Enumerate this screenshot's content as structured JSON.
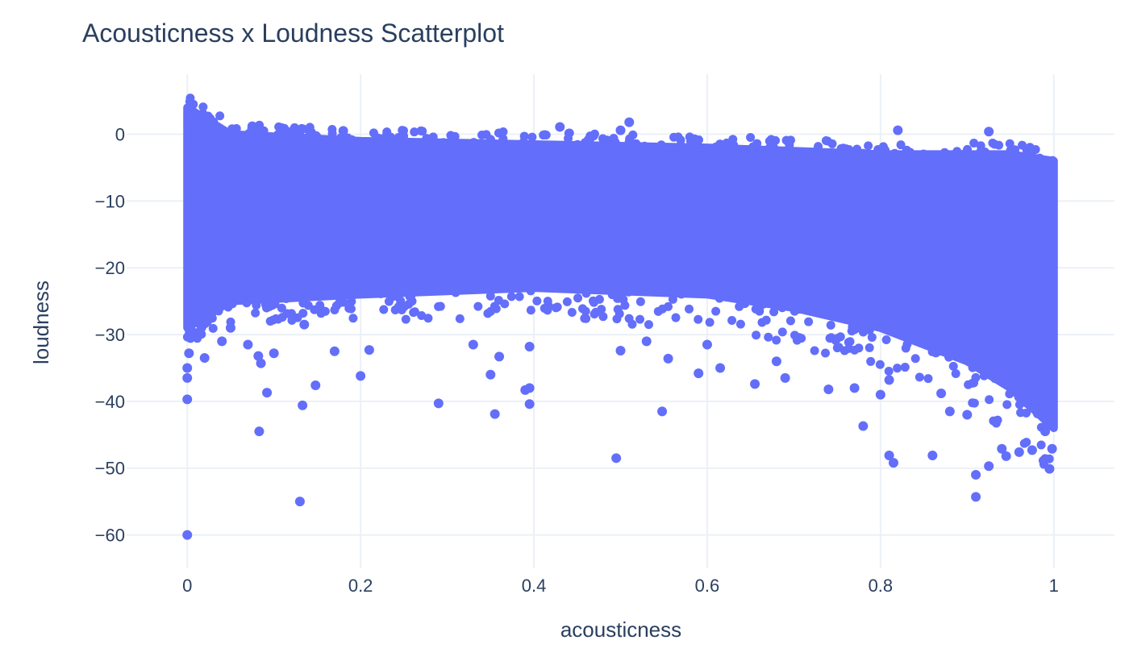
{
  "chart_data": {
    "type": "scatter",
    "title": "Acousticness x Loudness Scatterplot",
    "xlabel": "acousticness",
    "ylabel": "loudness",
    "xlim": [
      -0.07,
      1.07
    ],
    "ylim": [
      -65,
      9
    ],
    "xticks": [
      0,
      0.2,
      0.4,
      0.6,
      0.8,
      1
    ],
    "xtick_labels": [
      "0",
      "0.2",
      "0.4",
      "0.6",
      "0.8",
      "1"
    ],
    "yticks": [
      0,
      -10,
      -20,
      -30,
      -40,
      -50,
      -60
    ],
    "ytick_labels": [
      "0",
      "−10",
      "−20",
      "−30",
      "−40",
      "−50",
      "−60"
    ],
    "grid": true,
    "legend": "none",
    "marker_color": "#636efa",
    "density_band": {
      "description": "dense cloud of points",
      "upper": [
        [
          0.0,
          4
        ],
        [
          0.05,
          0
        ],
        [
          0.2,
          -1
        ],
        [
          0.4,
          -1.5
        ],
        [
          0.6,
          -2
        ],
        [
          0.8,
          -3
        ],
        [
          0.95,
          -3
        ],
        [
          1.0,
          -4
        ]
      ],
      "lower": [
        [
          0.0,
          -29
        ],
        [
          0.05,
          -25
        ],
        [
          0.2,
          -24
        ],
        [
          0.4,
          -23
        ],
        [
          0.6,
          -24
        ],
        [
          0.7,
          -26
        ],
        [
          0.8,
          -29
        ],
        [
          0.9,
          -34
        ],
        [
          0.95,
          -38
        ],
        [
          1.0,
          -44
        ]
      ]
    },
    "points": [
      {
        "x": 0.0,
        "y": -60
      },
      {
        "x": 0.0,
        "y": -39.7
      },
      {
        "x": 0.0,
        "y": -36.5
      },
      {
        "x": 0.0,
        "y": -35
      },
      {
        "x": 0.002,
        "y": -32.8
      },
      {
        "x": 0.002,
        "y": 3.8
      },
      {
        "x": 0.005,
        "y": 2.5
      },
      {
        "x": 0.02,
        "y": -33.5
      },
      {
        "x": 0.03,
        "y": 1.8
      },
      {
        "x": 0.04,
        "y": -31
      },
      {
        "x": 0.05,
        "y": -29
      },
      {
        "x": 0.07,
        "y": -31.5
      },
      {
        "x": 0.075,
        "y": 1.2
      },
      {
        "x": 0.082,
        "y": -33.2
      },
      {
        "x": 0.083,
        "y": -44.5
      },
      {
        "x": 0.085,
        "y": -34.3
      },
      {
        "x": 0.092,
        "y": -38.7
      },
      {
        "x": 0.1,
        "y": -32.8
      },
      {
        "x": 0.13,
        "y": -55
      },
      {
        "x": 0.133,
        "y": -40.6
      },
      {
        "x": 0.135,
        "y": -28.5
      },
      {
        "x": 0.148,
        "y": -37.6
      },
      {
        "x": 0.17,
        "y": -32.5
      },
      {
        "x": 0.18,
        "y": 0.5
      },
      {
        "x": 0.2,
        "y": -36.2
      },
      {
        "x": 0.21,
        "y": -32.3
      },
      {
        "x": 0.29,
        "y": -40.3
      },
      {
        "x": 0.33,
        "y": -31.5
      },
      {
        "x": 0.35,
        "y": -36
      },
      {
        "x": 0.355,
        "y": -41.9
      },
      {
        "x": 0.36,
        "y": -33.3
      },
      {
        "x": 0.39,
        "y": -38.3
      },
      {
        "x": 0.395,
        "y": -38
      },
      {
        "x": 0.395,
        "y": -40.4
      },
      {
        "x": 0.395,
        "y": -31.8
      },
      {
        "x": 0.43,
        "y": 1.1
      },
      {
        "x": 0.495,
        "y": -48.5
      },
      {
        "x": 0.5,
        "y": -32.4
      },
      {
        "x": 0.5,
        "y": 0.6
      },
      {
        "x": 0.51,
        "y": 1.8
      },
      {
        "x": 0.53,
        "y": -31
      },
      {
        "x": 0.548,
        "y": -41.5
      },
      {
        "x": 0.555,
        "y": -33.6
      },
      {
        "x": 0.59,
        "y": -35.8
      },
      {
        "x": 0.6,
        "y": -31.5
      },
      {
        "x": 0.615,
        "y": -35
      },
      {
        "x": 0.655,
        "y": -37.4
      },
      {
        "x": 0.68,
        "y": -34
      },
      {
        "x": 0.69,
        "y": -36.5
      },
      {
        "x": 0.74,
        "y": -38.2
      },
      {
        "x": 0.77,
        "y": -38
      },
      {
        "x": 0.78,
        "y": -43.7
      },
      {
        "x": 0.8,
        "y": -39
      },
      {
        "x": 0.81,
        "y": -36.8
      },
      {
        "x": 0.81,
        "y": -48.1
      },
      {
        "x": 0.815,
        "y": -49.2
      },
      {
        "x": 0.82,
        "y": 0.6
      },
      {
        "x": 0.86,
        "y": -48.1
      },
      {
        "x": 0.87,
        "y": -38.8
      },
      {
        "x": 0.88,
        "y": -41.5
      },
      {
        "x": 0.9,
        "y": -42
      },
      {
        "x": 0.91,
        "y": -51
      },
      {
        "x": 0.91,
        "y": -54.3
      },
      {
        "x": 0.925,
        "y": 0.4
      },
      {
        "x": 0.925,
        "y": -49.7
      },
      {
        "x": 0.94,
        "y": -47.1
      },
      {
        "x": 0.945,
        "y": -48.2
      },
      {
        "x": 0.96,
        "y": -47.6
      },
      {
        "x": 0.975,
        "y": -47.3
      },
      {
        "x": 0.995,
        "y": -50.1
      },
      {
        "x": 0.998,
        "y": -47.1
      },
      {
        "x": 0.99,
        "y": -44.5
      }
    ]
  }
}
